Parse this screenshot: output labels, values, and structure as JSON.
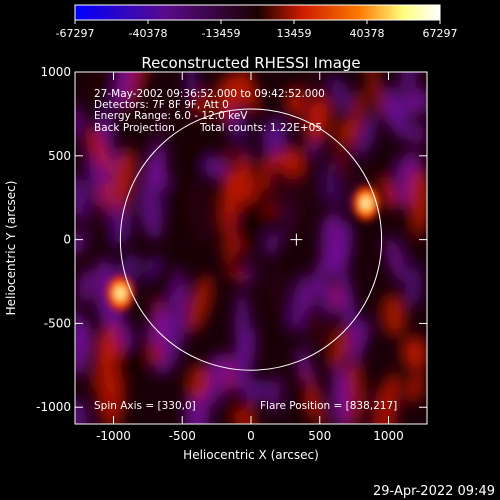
{
  "chart_data": {
    "type": "heatmap",
    "title": "Reconstructed RHESSI Image",
    "xlabel": "Heliocentric X (arcsec)",
    "ylabel": "Heliocentric Y (arcsec)",
    "xlim": [
      -1280,
      1280
    ],
    "ylim": [
      -1100,
      1000
    ],
    "x_ticks": [
      -1000,
      -500,
      0,
      500,
      1000
    ],
    "y_ticks": [
      -1000,
      -500,
      0,
      500,
      1000
    ],
    "colorbar": {
      "ticks": [
        -67297,
        -40378,
        -13459,
        13459,
        40378,
        67297
      ],
      "range": [
        -67297,
        67297
      ],
      "colormap": [
        "#0000ff",
        "#5a0a8a",
        "#1a0000",
        "#cc1a00",
        "#ff7a00",
        "#ffff80",
        "#ffffff"
      ]
    },
    "annotations": {
      "time_range": "27-May-2002 09:36:52.000 to 09:42:52.000",
      "detectors": "Detectors: 7F 8F 9F, Att 0",
      "energy": "Energy Range: 6.0 - 12.0 keV",
      "method": "Back Projection",
      "counts": "Total counts: 1.22E+05",
      "spin_axis": "Spin Axis = [330,0]",
      "flare_position": "Flare Position = [838,217]"
    },
    "solar_limb": {
      "center": [
        0,
        0
      ],
      "radius": 950
    },
    "disk_center_marker": [
      330,
      0
    ],
    "sources": [
      {
        "x": 838,
        "y": 217,
        "peak": 67297
      },
      {
        "x": -950,
        "y": -320,
        "peak": 60000
      }
    ]
  },
  "footer": {
    "date": "29-Apr-2022 09:49"
  }
}
